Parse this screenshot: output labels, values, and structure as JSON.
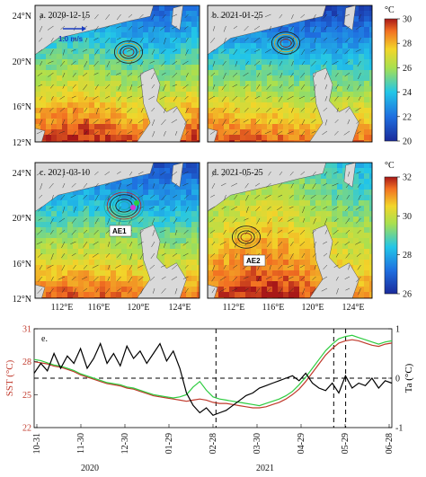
{
  "figure": {
    "panels": [
      {
        "label": "a. 2020-12-15",
        "scale_arrow_label": "1.0 m/s"
      },
      {
        "label": "b. 2021-01-25"
      },
      {
        "label": "c. 2021-03-10",
        "eddy_label": "AE1"
      },
      {
        "label": "d. 2021-05-25",
        "eddy_label": "AE2"
      }
    ],
    "lat_ticks": [
      "24°N",
      "20°N",
      "16°N",
      "12°N"
    ],
    "lon_ticks": [
      "112°E",
      "116°E",
      "120°E",
      "124°E"
    ],
    "colorbar_top": {
      "unit": "°C",
      "ticks": [
        "30",
        "28",
        "26",
        "24",
        "22",
        "20"
      ],
      "range": [
        20,
        30
      ]
    },
    "colorbar_bottom": {
      "unit": "°C",
      "ticks": [
        "32",
        "30",
        "28",
        "26"
      ],
      "range": [
        26,
        32
      ]
    },
    "colors": {
      "sst": "#c0392b",
      "sst_green": "#2ecc40",
      "ta": "#000000"
    }
  },
  "chart_data": [
    {
      "type": "line",
      "panel": "e.",
      "ylabel_left": "SST (°C)",
      "ylabel_right": "Ta (°C)",
      "ylim_left": [
        22,
        31
      ],
      "ylim_right": [
        -1,
        1
      ],
      "yticks_left": [
        "31",
        "28",
        "25",
        "22"
      ],
      "yticks_right": [
        "1",
        "0",
        "-1"
      ],
      "x_tick_labels": [
        "10-31",
        "11-30",
        "12-30",
        "01-29",
        "02-28",
        "03-30",
        "04-29",
        "05-29",
        "06-28"
      ],
      "year_labels": [
        "2020",
        "2021"
      ],
      "vlines_at": [
        "2021-03-02",
        "2021-05-20",
        "2021-05-28"
      ],
      "series": [
        {
          "axis": "left",
          "color": "#c0392b",
          "values": [
            28.0,
            27.9,
            27.8,
            27.6,
            27.5,
            27.3,
            27.1,
            26.8,
            26.6,
            26.4,
            26.2,
            26.0,
            25.9,
            25.8,
            25.6,
            25.5,
            25.3,
            25.1,
            24.9,
            24.8,
            24.7,
            24.6,
            24.5,
            24.4,
            24.5,
            24.6,
            24.5,
            24.3,
            24.2,
            24.2,
            24.1,
            24.0,
            23.9,
            23.8,
            23.8,
            23.9,
            24.1,
            24.3,
            24.6,
            25.0,
            25.5,
            26.2,
            27.0,
            27.8,
            28.6,
            29.2,
            29.7,
            29.9,
            30.0,
            29.9,
            29.7,
            29.5,
            29.4,
            29.6,
            29.7
          ]
        },
        {
          "axis": "left",
          "color": "#2ecc40",
          "values": [
            28.2,
            28.1,
            27.9,
            27.7,
            27.6,
            27.4,
            27.2,
            26.9,
            26.7,
            26.5,
            26.3,
            26.1,
            26.0,
            25.9,
            25.7,
            25.6,
            25.4,
            25.2,
            25.0,
            24.9,
            24.8,
            24.7,
            24.8,
            25.0,
            25.7,
            26.2,
            25.4,
            24.8,
            24.6,
            24.5,
            24.4,
            24.3,
            24.2,
            24.1,
            24.0,
            24.2,
            24.4,
            24.6,
            24.9,
            25.3,
            25.9,
            26.6,
            27.4,
            28.2,
            29.0,
            29.6,
            30.1,
            30.3,
            30.4,
            30.2,
            30.0,
            29.8,
            29.6,
            29.8,
            29.9
          ]
        },
        {
          "axis": "right",
          "color": "#000000",
          "values": [
            0.1,
            0.3,
            0.15,
            0.5,
            0.2,
            0.45,
            0.3,
            0.6,
            0.2,
            0.4,
            0.7,
            0.3,
            0.5,
            0.25,
            0.65,
            0.4,
            0.55,
            0.3,
            0.5,
            0.7,
            0.35,
            0.55,
            0.2,
            -0.3,
            -0.55,
            -0.7,
            -0.6,
            -0.75,
            -0.7,
            -0.65,
            -0.55,
            -0.45,
            -0.35,
            -0.3,
            -0.2,
            -0.15,
            -0.1,
            -0.05,
            0.0,
            0.05,
            -0.05,
            0.1,
            -0.1,
            -0.2,
            -0.25,
            -0.1,
            -0.3,
            0.05,
            -0.2,
            -0.1,
            -0.15,
            0.0,
            -0.2,
            -0.05,
            -0.1
          ]
        }
      ]
    }
  ]
}
